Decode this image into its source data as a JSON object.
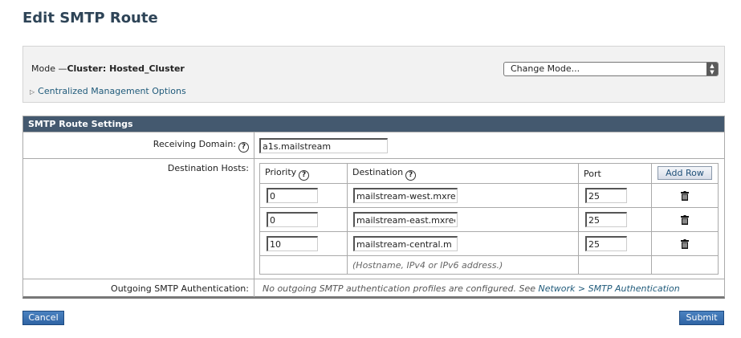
{
  "page": {
    "title": "Edit SMTP Route"
  },
  "mode": {
    "label": "Mode —",
    "value": "Cluster: Hosted_Cluster",
    "change_mode": "Change Mode...",
    "centralized": "Centralized Management Options"
  },
  "settings": {
    "header": "SMTP Route Settings",
    "receiving_domain_label": "Receiving Domain:",
    "receiving_domain_value": "a1s.mailstream",
    "destination_hosts_label": "Destination Hosts:",
    "columns": {
      "priority": "Priority",
      "destination": "Destination",
      "port": "Port",
      "add_row": "Add Row"
    },
    "rows": [
      {
        "priority": "0",
        "destination": "mailstream-west.mxre",
        "port": "25"
      },
      {
        "priority": "0",
        "destination": "mailstream-east.mxrec",
        "port": "25"
      },
      {
        "priority": "10",
        "destination": "mailstream-central.m",
        "port": "25"
      }
    ],
    "hint": "(Hostname, IPv4 or IPv6 address.)",
    "outgoing_label": "Outgoing SMTP Authentication:",
    "outgoing_text": "No outgoing SMTP authentication profiles are configured. See ",
    "outgoing_link": "Network > SMTP Authentication"
  },
  "buttons": {
    "cancel": "Cancel",
    "submit": "Submit"
  }
}
